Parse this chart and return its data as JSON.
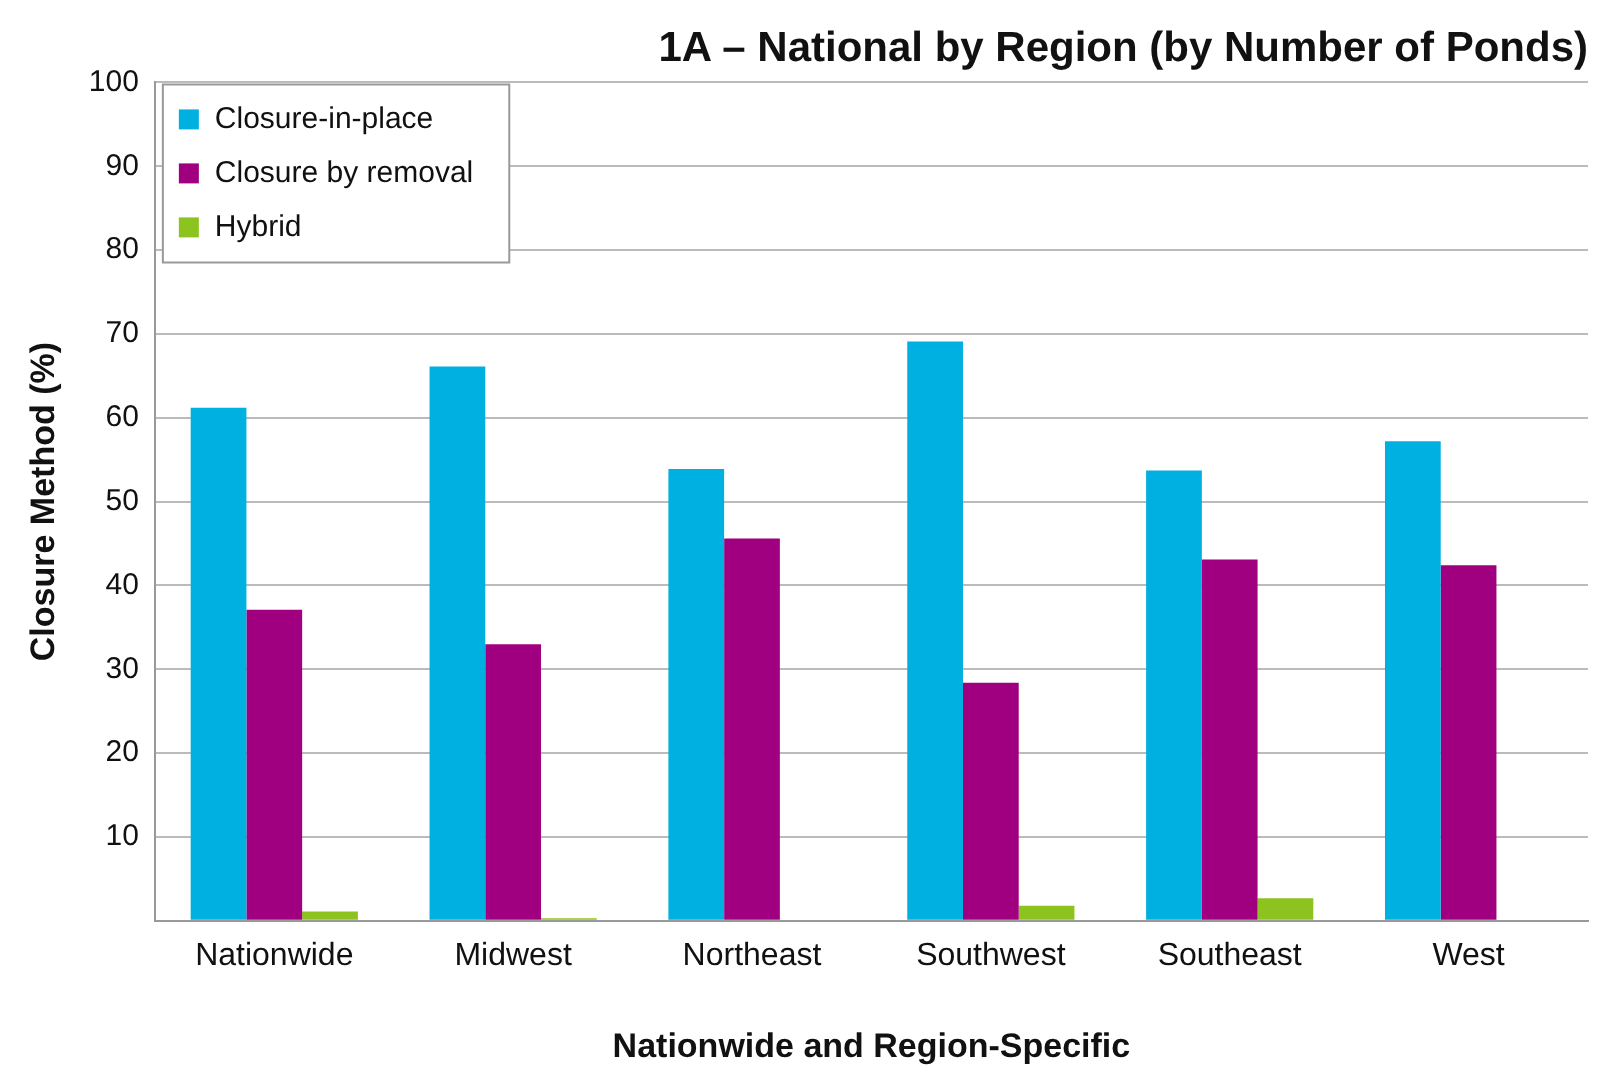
{
  "chart_data": {
    "type": "bar",
    "title": "1A – National by Region (by Number of Ponds)",
    "xlabel": "Nationwide and Region-Specific",
    "ylabel": "Closure Method (%)",
    "categories": [
      "Nationwide",
      "Midwest",
      "Northeast",
      "Southwest",
      "Southeast",
      "West"
    ],
    "series": [
      {
        "name": "Closure-in-place",
        "color": "#00b0e0",
        "values": [
          61.2,
          66.1,
          53.9,
          69.1,
          53.7,
          57.2
        ]
      },
      {
        "name": "Closure by removal",
        "color": "#a0007f",
        "values": [
          37.1,
          33.0,
          45.6,
          28.4,
          43.1,
          42.4
        ]
      },
      {
        "name": "Hybrid",
        "color": "#8cc31e",
        "values": [
          1.1,
          0.3,
          0,
          1.8,
          2.7,
          0
        ]
      }
    ],
    "ylim": [
      0,
      100
    ],
    "yticks": [
      {
        "value": 0,
        "label": null
      },
      10,
      20,
      30,
      40,
      50,
      60,
      70,
      80,
      90,
      100
    ],
    "grid": "y",
    "legend": "top left"
  }
}
